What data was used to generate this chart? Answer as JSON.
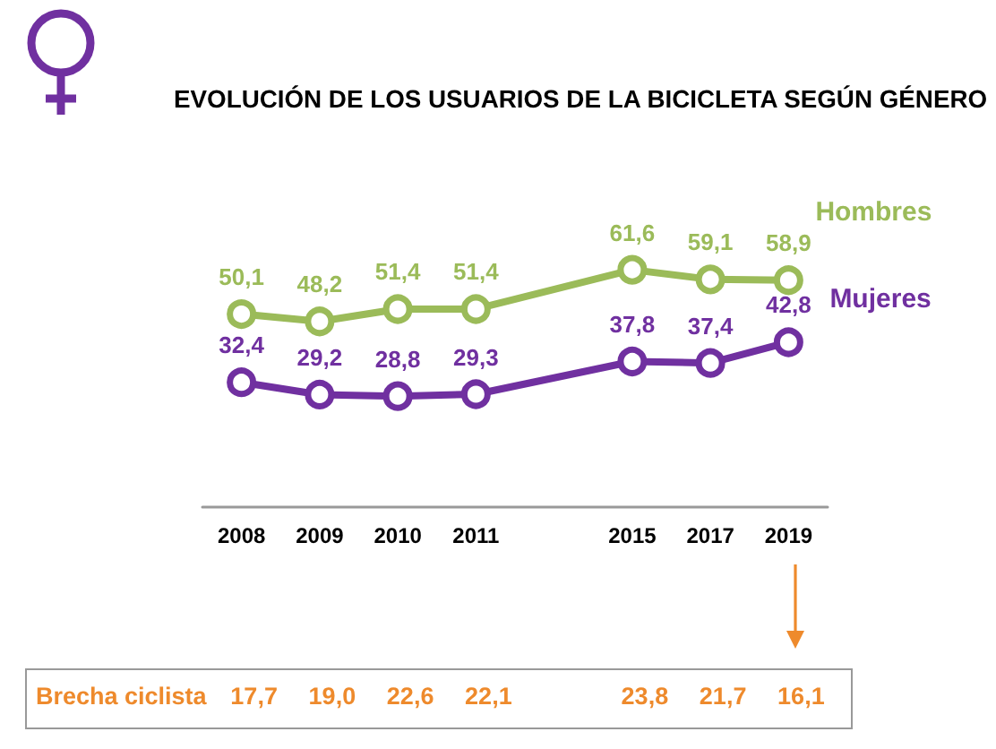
{
  "chart_data": {
    "type": "line",
    "title": "EVOLUCIÓN DE LOS USUARIOS DE LA BICICLETA SEGÚN GÉNERO",
    "categories": [
      "2008",
      "2009",
      "2010",
      "2011",
      null,
      "2015",
      "2017",
      "2019"
    ],
    "series": [
      {
        "name": "Hombres",
        "color": "#9bbb59",
        "values": [
          50.1,
          48.2,
          51.4,
          51.4,
          null,
          61.6,
          59.1,
          58.9
        ],
        "value_labels": [
          "50,1",
          "48,2",
          "51,4",
          "51,4",
          null,
          "61,6",
          "59,1",
          "58,9"
        ]
      },
      {
        "name": "Mujeres",
        "color": "#7030a0",
        "values": [
          32.4,
          29.2,
          28.8,
          29.3,
          null,
          37.8,
          37.4,
          42.8
        ],
        "value_labels": [
          "32,4",
          "29,2",
          "28,8",
          "29,3",
          null,
          "37,8",
          "37,4",
          "42,8"
        ]
      }
    ],
    "marker": "circle",
    "line_style": "solid",
    "grid": false,
    "tick_labels": "x",
    "annotations": [
      "Brecha ciclista",
      "17,7",
      "19,0",
      "22,6",
      "22,1",
      "23,8",
      "21,7",
      "16,1"
    ]
  }
}
